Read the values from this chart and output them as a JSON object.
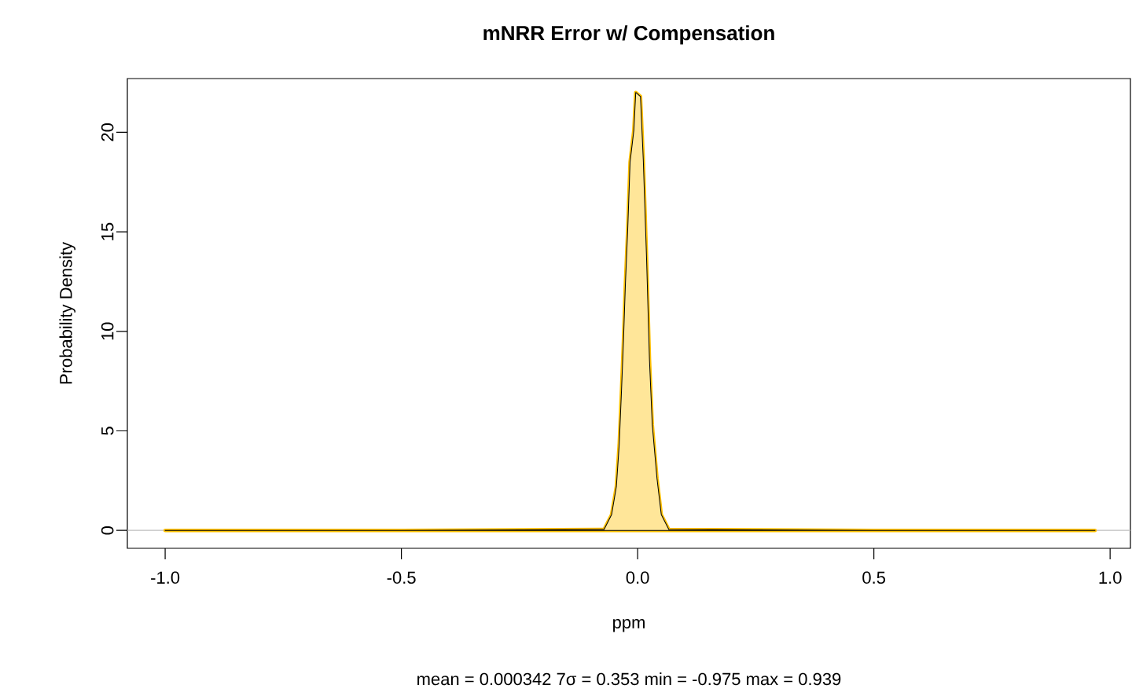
{
  "chart_data": {
    "type": "area",
    "title": "**mNRR Error w/ Compensation**",
    "xlabel": "ppm",
    "ylabel": "Probability Density",
    "annotations": [
      "mean = 0.000342    7σ = 0.353    min = -0.975    max = 0.939"
    ],
    "x": [
      -1.0,
      -0.5,
      -0.071,
      -0.055,
      -0.045,
      -0.039,
      -0.034,
      -0.03,
      -0.026,
      -0.021,
      -0.016,
      -0.008,
      -0.004,
      0.006,
      0.012,
      0.019,
      0.025,
      0.031,
      0.041,
      0.05,
      0.066,
      0.5,
      0.968
    ],
    "series": [
      {
        "color": "#ffc000",
        "values": [
          0,
          0,
          0.05,
          0.8,
          2.2,
          4.3,
          7.1,
          9.5,
          12.3,
          15.1,
          18.5,
          20.1,
          22.0,
          21.8,
          18.6,
          13.6,
          8.6,
          5.3,
          2.6,
          0.8,
          0.05,
          0,
          0
        ]
      }
    ],
    "xlim": [
      -1.08,
      1.043
    ],
    "ylim": [
      -0.9,
      22.7
    ],
    "xticks": [
      {
        "value": -1,
        "label": "-1.0"
      },
      {
        "value": -0.5,
        "label": "-0.5"
      },
      {
        "value": 0,
        "label": "0.0"
      },
      {
        "value": 0.5,
        "label": "0.5"
      },
      {
        "value": 1,
        "label": "1.0"
      }
    ],
    "yticks": [
      0,
      5,
      10,
      15,
      20
    ],
    "ref_lines": [
      {
        "axis": "y",
        "value": 0,
        "color": "#bebebe"
      }
    ],
    "grid": false,
    "marker": "none",
    "line_style": "solid"
  }
}
